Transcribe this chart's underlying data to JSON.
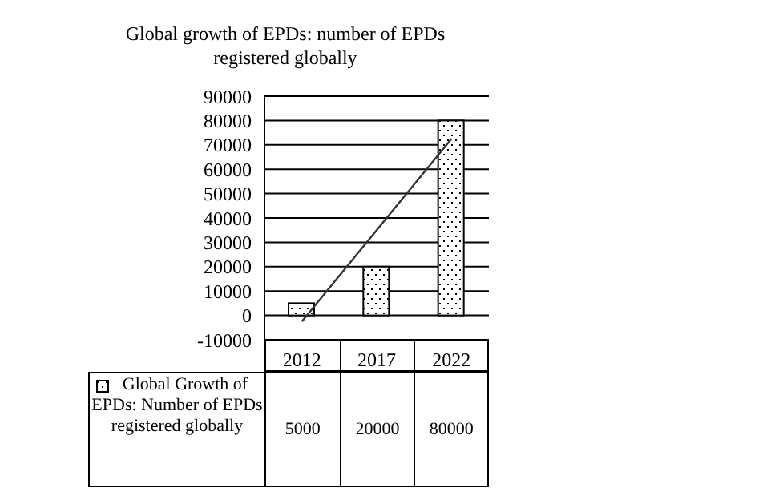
{
  "chart_data": {
    "type": "bar",
    "title": "Global growth of EPDs: number of EPDs registered globally",
    "categories": [
      "2012",
      "2017",
      "2022"
    ],
    "series": [
      {
        "name": "Global Growth of EPDs: Number of EPDs registered globally",
        "color": "#ffffff",
        "values": [
          5000,
          20000,
          80000
        ],
        "value_labels": [
          "5000",
          "20000",
          "80000"
        ]
      },
      {
        "type": "line",
        "color": "#333333",
        "values": [
          -2500,
          35000,
          72500
        ]
      }
    ],
    "ylim": [
      -10000,
      90000
    ],
    "yticks": [
      -10000,
      0,
      10000,
      20000,
      30000,
      40000,
      50000,
      60000,
      70000,
      80000,
      90000
    ],
    "grid": "y",
    "legend": "bottom",
    "marker": "none"
  }
}
